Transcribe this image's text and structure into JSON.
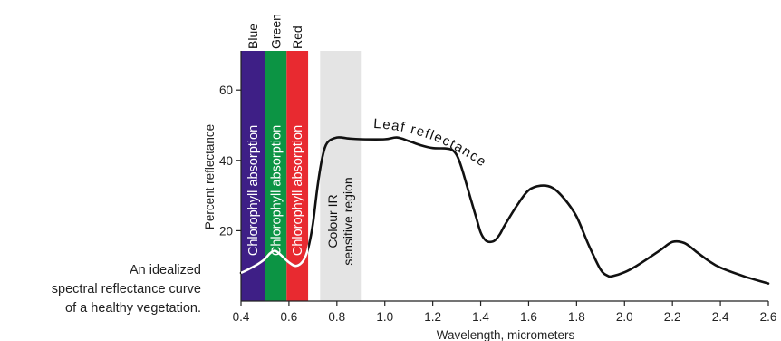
{
  "caption": {
    "lines": [
      "An idealized",
      "spectral reflectance curve",
      "of a healthy vegetation."
    ]
  },
  "chart_data": {
    "type": "line",
    "xlabel": "Wavelength, micrometers",
    "ylabel": "Percent reflectance",
    "xlim": [
      0.4,
      2.6
    ],
    "ylim": [
      0,
      70
    ],
    "xticks": [
      "0.4",
      "0.6",
      "0.8",
      "1.0",
      "1.2",
      "1.4",
      "1.6",
      "1.8",
      "2.0",
      "2.2",
      "2.4",
      "2.6"
    ],
    "yticks": [
      "20",
      "40",
      "60"
    ],
    "grid": false,
    "series": [
      {
        "name": "Leaf reflectance",
        "x": [
          0.4,
          0.43,
          0.47,
          0.5,
          0.52,
          0.54,
          0.56,
          0.6,
          0.63,
          0.66,
          0.68,
          0.7,
          0.72,
          0.74,
          0.76,
          0.8,
          0.85,
          0.9,
          1.0,
          1.05,
          1.1,
          1.15,
          1.2,
          1.25,
          1.28,
          1.3,
          1.32,
          1.35,
          1.38,
          1.4,
          1.42,
          1.44,
          1.46,
          1.48,
          1.5,
          1.55,
          1.6,
          1.65,
          1.7,
          1.75,
          1.8,
          1.85,
          1.9,
          1.93,
          1.95,
          2.0,
          2.05,
          2.1,
          2.15,
          2.2,
          2.25,
          2.3,
          2.35,
          2.4,
          2.5,
          2.6
        ],
        "y": [
          8,
          9,
          10.5,
          12,
          13.5,
          14.3,
          13.5,
          11,
          10,
          11.5,
          15,
          22,
          33,
          41,
          45,
          46.5,
          46.2,
          46,
          46,
          46.5,
          45.5,
          44.3,
          43.5,
          43.4,
          43,
          41.5,
          38,
          31,
          24,
          19.5,
          17.3,
          16.8,
          17.3,
          19,
          21.5,
          27,
          31.5,
          32.8,
          32.2,
          29,
          24,
          16,
          9,
          7.2,
          7.1,
          8.2,
          10,
          12.2,
          14.5,
          16.8,
          16.5,
          14,
          11.5,
          9.5,
          7,
          5
        ]
      }
    ],
    "annotations": [
      {
        "label": "Leaf reflectance",
        "kind": "curve-label"
      },
      {
        "band": "Blue",
        "label": "Chlorophyll absorption",
        "x_range": [
          0.4,
          0.5
        ],
        "color": "#3e1f86"
      },
      {
        "band": "Green",
        "label": "Chlorophyll absorption",
        "x_range": [
          0.5,
          0.59
        ],
        "color": "#0c9444"
      },
      {
        "band": "Red",
        "label": "Chlorophyll absorption",
        "x_range": [
          0.59,
          0.68
        ],
        "color": "#e82a30"
      },
      {
        "band": "",
        "label": "Colour IR sensitive region",
        "lines": [
          "Colour IR",
          "sensitive region"
        ],
        "x_range": [
          0.73,
          0.9
        ],
        "color": "#e4e4e4"
      }
    ]
  }
}
